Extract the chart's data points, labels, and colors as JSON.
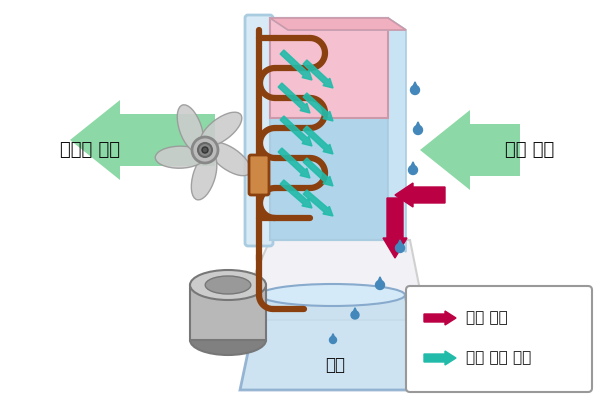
{
  "bg_color": "#ffffff",
  "green_arrow_color": "#66CC88",
  "red_arrow_color": "#BB0044",
  "teal_arrow_color": "#22BBAA",
  "brown_pipe_color": "#8B4010",
  "pink_block_color": "#F5C0CF",
  "blue_block_color": "#B0D5EA",
  "frame_color": "#AACCE0",
  "frame_fill": "#D8EAF5",
  "water_tank_color": "#C5DFF0",
  "water_tank_edge": "#88AACC",
  "fan_color": "#CCCCCC",
  "motor_fill": "#AAAAAA",
  "motor_dark": "#808080",
  "legend_box_color": "#ffffff",
  "legend_border_color": "#999999",
  "text_color": "#111111",
  "label_left": "건조한 공기",
  "label_right": "습한 공기",
  "label_tank": "물통",
  "legend_label1": "제습 과정",
  "legend_label2": "냉매 순환 과정",
  "water_drop_color": "#4488BB",
  "compressor_fill": "#B8B8B8",
  "compressor_top": "#CCCCCC"
}
